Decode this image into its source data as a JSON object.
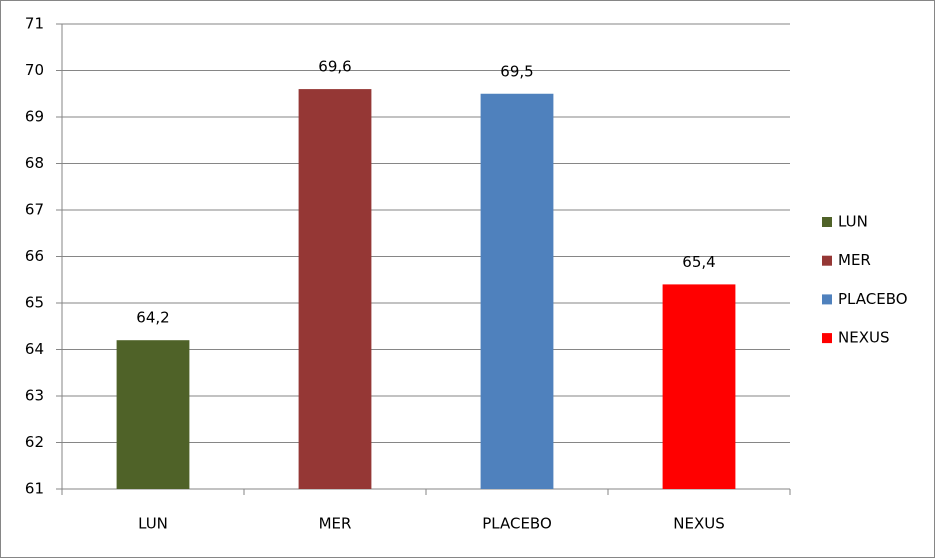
{
  "chart_data": {
    "type": "bar",
    "categories": [
      "LUN",
      "MER",
      "PLACEBO",
      "NEXUS"
    ],
    "values": [
      64.2,
      69.6,
      69.5,
      65.4
    ],
    "value_labels": [
      "64,2",
      "69,6",
      "69,5",
      "65,4"
    ],
    "colors": [
      "#4f6228",
      "#953735",
      "#4f81bd",
      "#ff0000"
    ],
    "ylim": [
      61,
      71
    ],
    "yticks": [
      61,
      62,
      63,
      64,
      65,
      66,
      67,
      68,
      69,
      70,
      71
    ],
    "grid": true,
    "legend": "right"
  }
}
